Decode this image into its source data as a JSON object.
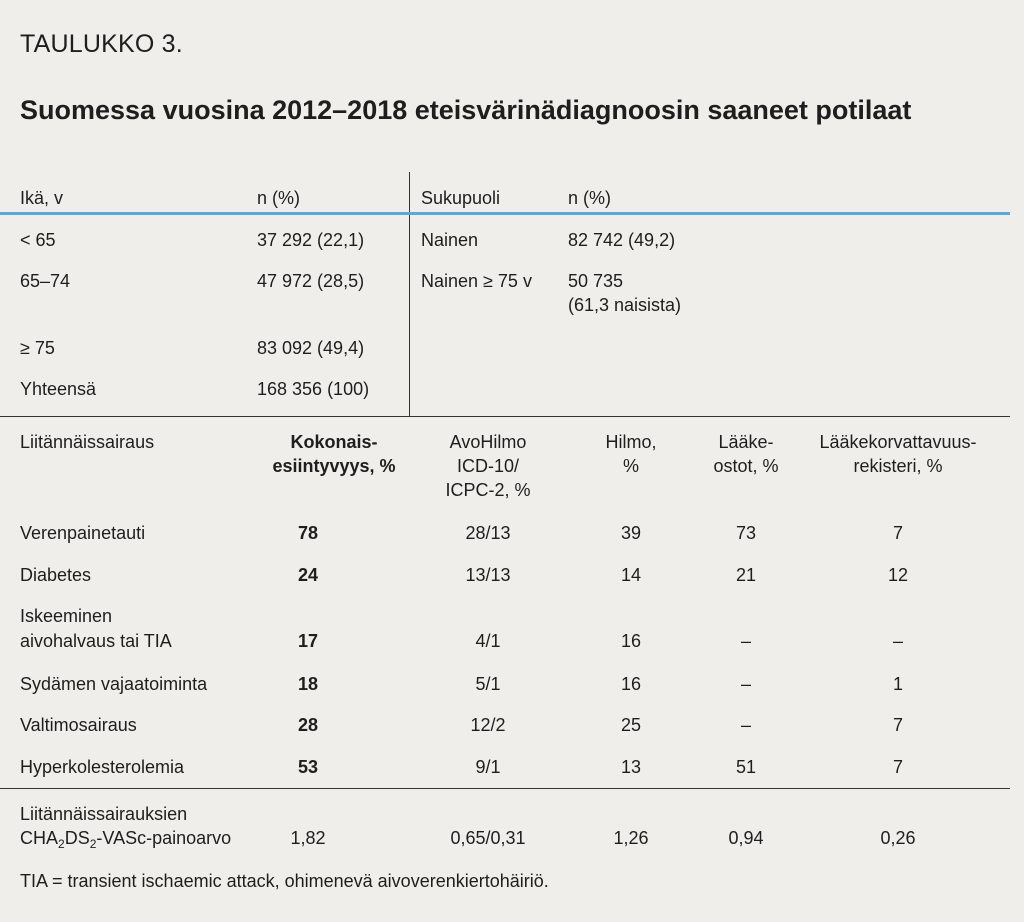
{
  "table_label": "TAULUKKO 3.",
  "title": "Suomessa vuosina 2012–2018 eteisvärinädiagnoosin saaneet potilaat",
  "age_table": {
    "headers": {
      "age": "Ikä, v",
      "n": "n (%)"
    },
    "rows": [
      {
        "age": "< 65",
        "n": "37 292 (22,1)"
      },
      {
        "age": "65–74",
        "n": "47 972 (28,5)"
      },
      {
        "age": "≥ 75",
        "n": "83 092 (49,4)"
      },
      {
        "age": "Yhteensä",
        "n": "168 356 (100)"
      }
    ]
  },
  "sex_table": {
    "headers": {
      "sex": "Sukupuoli",
      "n": "n (%)"
    },
    "rows": [
      {
        "sex": "Nainen",
        "n": "82 742 (49,2)",
        "n2": ""
      },
      {
        "sex": "Nainen ≥ 75 v",
        "n": "50 735",
        "n2": "(61,3 naisista)"
      }
    ]
  },
  "comorbidity_table": {
    "headers": {
      "disease": "Liitännäissairaus",
      "total_1": "Kokonais-",
      "total_2": "esiintyvyys, %",
      "avohilmo_1": "AvoHilmo",
      "avohilmo_2": "ICD-10/",
      "avohilmo_3": "ICPC-2, %",
      "hilmo_1": "Hilmo,",
      "hilmo_2": "%",
      "laake_1": "Lääke-",
      "laake_2": "ostot, %",
      "rek_1": "Lääkekorvattavuus-",
      "rek_2": "rekisteri, %"
    },
    "rows": [
      {
        "disease": "Verenpainetauti",
        "disease2": "",
        "total": "78",
        "avohilmo": "28/13",
        "hilmo": "39",
        "laake": "73",
        "rek": "7"
      },
      {
        "disease": "Diabetes",
        "disease2": "",
        "total": "24",
        "avohilmo": "13/13",
        "hilmo": "14",
        "laake": "21",
        "rek": "12"
      },
      {
        "disease": "Iskeeminen",
        "disease2": "aivohalvaus tai TIA",
        "total": "17",
        "avohilmo": "4/1",
        "hilmo": "16",
        "laake": "–",
        "rek": "–"
      },
      {
        "disease": "Sydämen vajaatoiminta",
        "disease2": "",
        "total": "18",
        "avohilmo": "5/1",
        "hilmo": "16",
        "laake": "–",
        "rek": "1"
      },
      {
        "disease": "Valtimosairaus",
        "disease2": "",
        "total": "28",
        "avohilmo": "12/2",
        "hilmo": "25",
        "laake": "–",
        "rek": "7"
      },
      {
        "disease": "Hyperkolesterolemia",
        "disease2": "",
        "total": "53",
        "avohilmo": "9/1",
        "hilmo": "13",
        "laake": "51",
        "rek": "7"
      }
    ],
    "summary": {
      "label_1": "Liitännäissairauksien",
      "label_2a": "CHA",
      "label_2b": "2",
      "label_2c": "DS",
      "label_2d": "2",
      "label_2e": "-VASc-painoarvo",
      "total": "1,82",
      "avohilmo": "0,65/0,31",
      "hilmo": "1,26",
      "laake": "0,94",
      "rek": "0,26"
    }
  },
  "footnote": "TIA = transient ischaemic attack, ohimenevä aivoverenkiertohäiriö."
}
